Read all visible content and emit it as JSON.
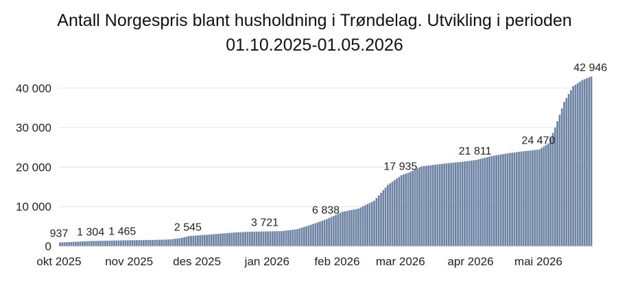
{
  "chart_data": {
    "type": "bar",
    "title_line1": "Antall Norgespris blant husholdning i Trøndelag. Utvikling i perioden",
    "title_line2": "01.10.2025-01.05.2026",
    "xlabel": "",
    "ylabel": "",
    "ylim": [
      0,
      45000
    ],
    "y_ticks": [
      {
        "value": 0,
        "label": "0"
      },
      {
        "value": 10000,
        "label": "10 000"
      },
      {
        "value": 20000,
        "label": "20 000"
      },
      {
        "value": 30000,
        "label": "30 000"
      },
      {
        "value": 40000,
        "label": "40 000"
      }
    ],
    "x_ticks": [
      {
        "date": "2025-10-01",
        "label": "okt 2025"
      },
      {
        "date": "2025-11-01",
        "label": "nov 2025"
      },
      {
        "date": "2025-12-01",
        "label": "des 2025"
      },
      {
        "date": "2026-01-01",
        "label": "jan 2026"
      },
      {
        "date": "2026-02-01",
        "label": "feb 2026"
      },
      {
        "date": "2026-03-01",
        "label": "mar 2026"
      },
      {
        "date": "2026-04-01",
        "label": "apr 2026"
      },
      {
        "date": "2026-05-01",
        "label": "mai 2026"
      }
    ],
    "bar_color": "#6c83a4",
    "grid": true,
    "points": [
      {
        "date": "2025-10-01",
        "value": 937
      },
      {
        "date": "2025-10-08",
        "value": 1100
      },
      {
        "date": "2025-10-15",
        "value": 1304
      },
      {
        "date": "2025-10-22",
        "value": 1380
      },
      {
        "date": "2025-10-29",
        "value": 1465
      },
      {
        "date": "2025-11-05",
        "value": 1520
      },
      {
        "date": "2025-11-12",
        "value": 1580
      },
      {
        "date": "2025-11-19",
        "value": 1700
      },
      {
        "date": "2025-11-24",
        "value": 2100
      },
      {
        "date": "2025-11-27",
        "value": 2545
      },
      {
        "date": "2025-12-03",
        "value": 2800
      },
      {
        "date": "2025-12-10",
        "value": 3100
      },
      {
        "date": "2025-12-17",
        "value": 3450
      },
      {
        "date": "2025-12-24",
        "value": 3650
      },
      {
        "date": "2025-12-31",
        "value": 3721
      },
      {
        "date": "2026-01-07",
        "value": 3800
      },
      {
        "date": "2026-01-14",
        "value": 4300
      },
      {
        "date": "2026-01-21",
        "value": 5600
      },
      {
        "date": "2026-01-27",
        "value": 6838
      },
      {
        "date": "2026-02-03",
        "value": 8700
      },
      {
        "date": "2026-02-10",
        "value": 9500
      },
      {
        "date": "2026-02-17",
        "value": 11500
      },
      {
        "date": "2026-02-23",
        "value": 15500
      },
      {
        "date": "2026-03-01",
        "value": 17935
      },
      {
        "date": "2026-03-05",
        "value": 18800
      },
      {
        "date": "2026-03-10",
        "value": 20200
      },
      {
        "date": "2026-03-20",
        "value": 20900
      },
      {
        "date": "2026-03-27",
        "value": 21300
      },
      {
        "date": "2026-04-03",
        "value": 21811
      },
      {
        "date": "2026-04-10",
        "value": 22800
      },
      {
        "date": "2026-04-17",
        "value": 23500
      },
      {
        "date": "2026-04-24",
        "value": 24000
      },
      {
        "date": "2026-05-01",
        "value": 24470
      },
      {
        "date": "2026-05-05",
        "value": 26000
      },
      {
        "date": "2026-05-08",
        "value": 30000
      },
      {
        "date": "2026-05-12",
        "value": 36500
      },
      {
        "date": "2026-05-16",
        "value": 40500
      },
      {
        "date": "2026-05-20",
        "value": 42000
      },
      {
        "date": "2026-05-24",
        "value": 42946
      }
    ],
    "data_labels": [
      {
        "date": "2025-10-01",
        "value": 937,
        "label": "937"
      },
      {
        "date": "2025-10-15",
        "value": 1304,
        "label": "1 304"
      },
      {
        "date": "2025-10-29",
        "value": 1465,
        "label": "1 465"
      },
      {
        "date": "2025-11-27",
        "value": 2545,
        "label": "2 545"
      },
      {
        "date": "2025-12-31",
        "value": 3721,
        "label": "3 721"
      },
      {
        "date": "2026-01-27",
        "value": 6838,
        "label": "6 838"
      },
      {
        "date": "2026-03-01",
        "value": 17935,
        "label": "17 935"
      },
      {
        "date": "2026-04-03",
        "value": 21811,
        "label": "21 811"
      },
      {
        "date": "2026-05-01",
        "value": 24470,
        "label": "24 470"
      },
      {
        "date": "2026-05-24",
        "value": 42946,
        "label": "42 946"
      }
    ]
  }
}
